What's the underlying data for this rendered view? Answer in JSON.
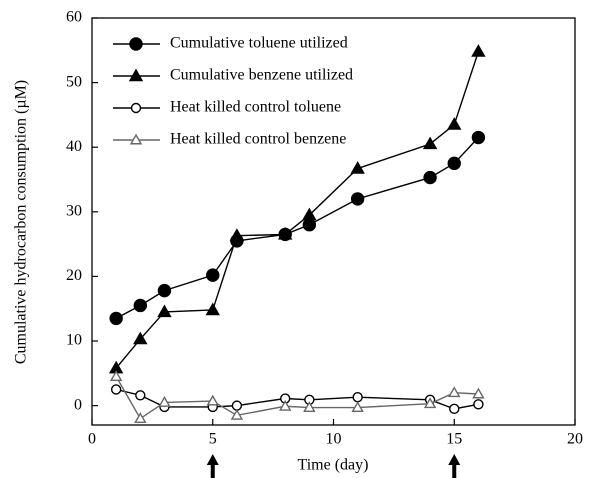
{
  "chart_data": {
    "type": "line",
    "xlabel": "Time (day)",
    "ylabel": "Cumulative hydrocarbon consumption (µM)",
    "xlim": [
      0,
      20
    ],
    "xticks": [
      0,
      5,
      10,
      15,
      20
    ],
    "ylim": [
      -3,
      60
    ],
    "yticks": [
      0,
      10,
      20,
      30,
      40,
      50,
      60
    ],
    "legend": "upper left",
    "arrows_x": [
      5,
      15
    ],
    "series": [
      {
        "name": "Cumulative toluene utilized",
        "color": "#000000",
        "marker": "circle",
        "filled": true,
        "x": [
          1,
          2,
          3,
          5,
          6,
          8,
          9,
          11,
          14,
          15,
          16
        ],
        "values": [
          13.5,
          15.5,
          17.8,
          20.2,
          25.5,
          26.5,
          28,
          32,
          35.3,
          37.5,
          41.5
        ]
      },
      {
        "name": "Cumulative benzene utilized",
        "color": "#000000",
        "marker": "triangle",
        "filled": true,
        "x": [
          1,
          2,
          3,
          5,
          6,
          8,
          9,
          11,
          14,
          15,
          16
        ],
        "values": [
          5.8,
          10.3,
          14.5,
          14.8,
          26.3,
          26.5,
          29.5,
          36.7,
          40.5,
          43.5,
          54.8
        ]
      },
      {
        "name": "Heat killed control toluene",
        "color": "#000000",
        "marker": "circle",
        "filled": false,
        "x": [
          1,
          2,
          3,
          5,
          6,
          8,
          9,
          11,
          14,
          15,
          16
        ],
        "values": [
          2.5,
          1.6,
          -0.2,
          -0.2,
          0,
          1.1,
          0.9,
          1.3,
          0.9,
          -0.5,
          0.2
        ]
      },
      {
        "name": "Heat killed control benzene",
        "color": "#666666",
        "marker": "triangle",
        "filled": false,
        "x": [
          1,
          2,
          3,
          5,
          6,
          8,
          9,
          11,
          14,
          15,
          16
        ],
        "values": [
          4.5,
          -2,
          0.5,
          0.7,
          -1.5,
          -0.1,
          -0.3,
          -0.3,
          0.3,
          2,
          1.8
        ]
      }
    ]
  }
}
